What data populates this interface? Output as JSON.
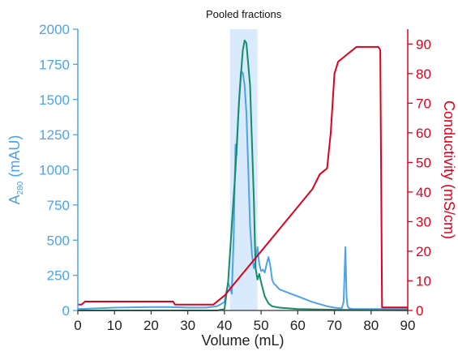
{
  "chart_data": {
    "type": "line",
    "annotation": "Pooled fractions",
    "pooled_range": [
      41.5,
      49
    ],
    "xlabel": "Volume (mL)",
    "ylabel_left": "A",
    "ylabel_left_sub": "280",
    "ylabel_left_unit": " (mAU)",
    "ylabel_right": "Conductivity (mS/cm)",
    "xlim": [
      0,
      90
    ],
    "ylim_left": [
      0,
      2000
    ],
    "ylim_right": [
      0,
      95
    ],
    "x_ticks": [
      "0",
      "10",
      "20",
      "30",
      "40",
      "50",
      "60",
      "70",
      "80",
      "90"
    ],
    "y_left_ticks": [
      "0",
      "250",
      "500",
      "750",
      "1000",
      "1250",
      "1500",
      "1750",
      "2000"
    ],
    "y_right_ticks": [
      "0",
      "10",
      "20",
      "30",
      "40",
      "50",
      "60",
      "70",
      "80",
      "90"
    ],
    "colors": {
      "left_axis": "#4da3e8",
      "right_axis": "#e0001b",
      "highlight": "#d8eafb",
      "pooled_trace": "#148c6a"
    },
    "series": [
      {
        "key": "a280",
        "axis": "left",
        "color": "#4da3e8",
        "x": [
          0,
          5,
          10,
          20,
          25,
          30,
          35,
          38,
          40,
          41,
          42,
          42.5,
          43,
          43.3,
          43.8,
          44.5,
          45,
          45.5,
          46,
          46.5,
          47,
          47.5,
          48,
          48.5,
          49,
          49.5,
          50,
          50.5,
          51,
          51.5,
          52,
          52.5,
          53,
          53.5,
          54,
          55,
          56,
          57,
          58,
          60,
          62,
          64,
          66,
          68,
          70,
          72,
          72.5,
          73,
          73.3,
          73.6,
          74,
          75,
          80,
          85,
          90
        ],
        "y": [
          10,
          15,
          20,
          25,
          25,
          20,
          20,
          30,
          60,
          200,
          120,
          500,
          1180,
          1100,
          1400,
          1700,
          1690,
          1600,
          1400,
          1000,
          600,
          400,
          300,
          350,
          450,
          330,
          280,
          290,
          270,
          330,
          380,
          320,
          220,
          190,
          180,
          150,
          140,
          130,
          120,
          100,
          80,
          60,
          45,
          30,
          20,
          15,
          60,
          450,
          100,
          30,
          15,
          10,
          10,
          10,
          10
        ]
      },
      {
        "key": "pooled",
        "axis": "left",
        "color": "#148c6a",
        "x": [
          0,
          20,
          30,
          35,
          38,
          40,
          41,
          42,
          43,
          44,
          45,
          45.5,
          46,
          47,
          48,
          48.5,
          49,
          49.5,
          50,
          51,
          52,
          53,
          55,
          60,
          70,
          80,
          90
        ],
        "y": [
          0,
          0,
          0,
          0,
          0,
          10,
          200,
          600,
          1000,
          1500,
          1850,
          1920,
          1900,
          1600,
          800,
          300,
          220,
          260,
          200,
          100,
          50,
          30,
          20,
          10,
          5,
          3,
          2
        ]
      },
      {
        "key": "conductivity",
        "axis": "right",
        "color": "#e0001b",
        "x": [
          0,
          1,
          2,
          26,
          26.5,
          37,
          40,
          44,
          48,
          52,
          56,
          60,
          64,
          66,
          67,
          68,
          69,
          70,
          71,
          72,
          73,
          74,
          75,
          76,
          78,
          80,
          82,
          82.5,
          83,
          90
        ],
        "y": [
          2,
          2,
          3,
          3,
          2,
          2,
          5,
          11,
          17,
          23,
          29,
          35,
          41,
          46,
          47,
          48,
          60,
          80,
          84,
          85,
          86,
          87,
          88,
          89,
          89,
          89,
          89,
          88,
          1,
          1
        ]
      }
    ]
  }
}
